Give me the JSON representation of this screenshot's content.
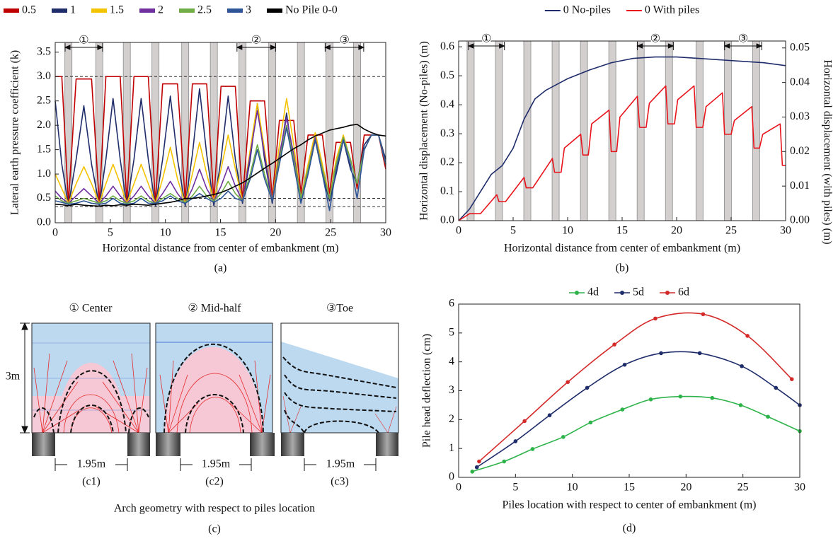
{
  "chart_data": [
    {
      "type": "line",
      "panel": "(a)",
      "ylabel": "Lateral earth pressure coefficient (k)",
      "xlabel": "Horizontal distance from center of embankment (m)",
      "xlim": [
        0,
        30
      ],
      "ylim": [
        0,
        3.7
      ],
      "xticks": [
        0,
        5,
        10,
        15,
        20,
        25,
        30
      ],
      "yticks": [
        {
          "value": 0,
          "label": "0.0"
        },
        0.5,
        {
          "value": 1,
          "label": "1.0"
        },
        1.5,
        {
          "value": 2,
          "label": "2.0"
        },
        2.5,
        {
          "value": 3,
          "label": "3.0"
        },
        3.5
      ],
      "legend": "top",
      "piles": [
        1.2,
        4.0,
        6.5,
        9.1,
        11.8,
        14.4,
        17.0,
        19.7,
        22.3,
        24.9,
        27.4
      ],
      "ref_lines": [
        3.0,
        0.5,
        0.33
      ],
      "annotations": [
        {
          "text": "①",
          "x": [
            0.9,
            4.3
          ]
        },
        {
          "text": "②",
          "x": [
            16.5,
            20.0
          ]
        },
        {
          "text": "③",
          "x": [
            24.5,
            28.0
          ]
        }
      ],
      "x": [
        0,
        0.6,
        1.2,
        1.9,
        2.6,
        3.3,
        4.0,
        4.6,
        5.25,
        5.9,
        6.5,
        7.15,
        7.8,
        8.45,
        9.1,
        9.75,
        10.45,
        11.1,
        11.8,
        12.45,
        13.1,
        13.75,
        14.4,
        15.05,
        15.7,
        16.35,
        17.0,
        17.7,
        18.35,
        19.0,
        19.7,
        20.35,
        21.0,
        21.65,
        22.3,
        22.95,
        23.6,
        24.25,
        24.9,
        25.5,
        26.15,
        26.8,
        27.4,
        28.05,
        28.7,
        29.35,
        30.0
      ],
      "series": [
        {
          "name": "0.5",
          "color": "#c00000",
          "values": [
            3.0,
            3.0,
            0.4,
            2.95,
            2.95,
            2.95,
            0.4,
            3.0,
            3.0,
            3.0,
            0.4,
            3.0,
            3.0,
            3.0,
            0.4,
            2.85,
            2.85,
            2.85,
            0.45,
            2.85,
            2.85,
            2.85,
            0.45,
            2.8,
            2.8,
            2.8,
            0.45,
            2.5,
            2.5,
            2.5,
            0.5,
            2.1,
            2.1,
            2.1,
            0.6,
            1.8,
            1.8,
            1.8,
            0.6,
            1.65,
            1.65,
            1.65,
            0.7,
            1.8,
            1.8,
            1.8,
            1.1
          ]
        },
        {
          "name": "1",
          "color": "#1f2d6b",
          "values": [
            2.5,
            1.2,
            0.35,
            1.3,
            2.4,
            1.2,
            0.35,
            1.3,
            2.55,
            1.3,
            0.35,
            1.3,
            2.55,
            1.3,
            0.35,
            1.3,
            2.6,
            1.3,
            0.35,
            1.4,
            2.75,
            1.4,
            0.35,
            1.3,
            2.6,
            1.3,
            0.4,
            1.3,
            2.45,
            1.3,
            0.4,
            1.3,
            2.25,
            1.2,
            0.45,
            1.0,
            1.7,
            1.0,
            0.45,
            1.0,
            1.7,
            1.1,
            0.8,
            1.6,
            1.8,
            1.8,
            1.3
          ]
        },
        {
          "name": "1.5",
          "color": "#f5c400",
          "values": [
            1.0,
            0.7,
            0.4,
            0.8,
            1.15,
            0.8,
            0.4,
            0.8,
            1.2,
            0.8,
            0.4,
            0.8,
            1.2,
            0.8,
            0.4,
            0.9,
            1.55,
            0.9,
            0.4,
            1.0,
            1.65,
            1.0,
            0.45,
            1.1,
            1.8,
            1.1,
            0.45,
            1.5,
            2.45,
            1.5,
            0.45,
            1.6,
            2.55,
            1.6,
            0.5,
            1.2,
            1.85,
            1.2,
            0.5,
            1.3,
            1.8,
            1.3,
            0.8,
            1.5,
            1.8,
            1.8,
            1.2
          ]
        },
        {
          "name": "2",
          "color": "#7030a0",
          "values": [
            0.65,
            0.5,
            0.4,
            0.55,
            0.7,
            0.55,
            0.4,
            0.55,
            0.75,
            0.55,
            0.4,
            0.55,
            0.75,
            0.55,
            0.4,
            0.6,
            0.85,
            0.6,
            0.4,
            0.7,
            1.1,
            0.7,
            0.45,
            0.75,
            1.15,
            0.75,
            0.45,
            1.4,
            2.3,
            1.4,
            0.45,
            1.4,
            2.15,
            1.4,
            0.5,
            1.1,
            1.75,
            1.1,
            0.5,
            1.2,
            1.75,
            1.3,
            0.8,
            1.5,
            1.8,
            1.8,
            1.2
          ]
        },
        {
          "name": "2.5",
          "color": "#70ad47",
          "values": [
            0.55,
            0.45,
            0.4,
            0.45,
            0.5,
            0.45,
            0.4,
            0.45,
            0.55,
            0.45,
            0.4,
            0.45,
            0.55,
            0.45,
            0.4,
            0.5,
            0.6,
            0.5,
            0.42,
            0.55,
            0.75,
            0.55,
            0.45,
            0.6,
            0.85,
            0.6,
            0.45,
            1.0,
            1.6,
            1.0,
            0.45,
            1.3,
            2.0,
            1.3,
            0.5,
            1.1,
            1.7,
            1.1,
            0.5,
            1.2,
            1.75,
            1.3,
            0.8,
            1.5,
            1.8,
            1.8,
            1.2
          ]
        },
        {
          "name": "3",
          "color": "#2e5597",
          "values": [
            0.45,
            0.42,
            0.38,
            0.4,
            0.45,
            0.4,
            0.38,
            0.4,
            0.5,
            0.4,
            0.38,
            0.4,
            0.5,
            0.4,
            0.4,
            0.45,
            0.55,
            0.45,
            0.4,
            0.5,
            0.6,
            0.5,
            0.42,
            0.5,
            0.65,
            0.5,
            0.45,
            0.9,
            1.5,
            0.9,
            0.45,
            1.2,
            1.95,
            1.2,
            0.4,
            1.0,
            1.7,
            1.0,
            0.25,
            1.1,
            1.7,
            1.2,
            0.5,
            1.5,
            1.8,
            1.8,
            1.2
          ]
        },
        {
          "name": "No Pile 0-0",
          "color": "#000000",
          "values": [
            0.38,
            0.37,
            0.35,
            0.38,
            0.36,
            0.35,
            0.34,
            0.36,
            0.35,
            0.37,
            0.36,
            0.38,
            0.37,
            0.36,
            0.38,
            0.4,
            0.42,
            0.45,
            0.5,
            0.5,
            0.52,
            0.55,
            0.58,
            0.62,
            0.68,
            0.75,
            0.82,
            0.92,
            1.02,
            1.12,
            1.22,
            1.32,
            1.42,
            1.52,
            1.6,
            1.7,
            1.78,
            1.84,
            1.9,
            1.93,
            1.96,
            2.0,
            2.02,
            1.92,
            1.85,
            1.8,
            1.78
          ]
        }
      ]
    },
    {
      "type": "line",
      "panel": "(b)",
      "ylabel": "Horizontal displacement (No-piles) (m)",
      "y2label": "Horizontal displacement (with piles) (m)",
      "xlabel": "Horizontal distance from center of embankment (m)",
      "xlim": [
        0,
        30
      ],
      "ylim": [
        0,
        0.62
      ],
      "y2lim": [
        0,
        0.052
      ],
      "xticks": [
        0,
        5,
        10,
        15,
        20,
        25,
        30
      ],
      "yticks": [
        {
          "value": 0,
          "label": "0.0"
        },
        0.1,
        0.2,
        0.3,
        0.4,
        0.5,
        0.6
      ],
      "y2ticks": [
        {
          "value": 0,
          "label": "0.00"
        },
        {
          "value": 0.01,
          "label": "0.01"
        },
        {
          "value": 0.02,
          "label": "0.02"
        },
        {
          "value": 0.03,
          "label": "0.03"
        },
        {
          "value": 0.04,
          "label": "0.04"
        },
        {
          "value": 0.05,
          "label": "0.05"
        }
      ],
      "legend": "top",
      "piles": [
        1.1,
        3.7,
        6.3,
        8.9,
        11.5,
        14.1,
        16.7,
        19.3,
        22.1,
        24.7,
        27.3
      ],
      "annotations": [
        {
          "text": "①",
          "x": [
            0.9,
            4.2
          ]
        },
        {
          "text": "②",
          "x": [
            16.4,
            19.7
          ]
        },
        {
          "text": "③",
          "x": [
            24.4,
            27.8
          ]
        }
      ],
      "series": [
        {
          "name": "0 No-piles",
          "color": "#1f2d6b",
          "x": [
            0,
            1,
            2,
            3,
            4,
            5,
            6,
            7,
            8,
            9,
            10,
            12,
            14,
            16,
            18,
            20,
            22,
            24,
            26,
            28,
            30
          ],
          "values": [
            0,
            0.04,
            0.1,
            0.16,
            0.19,
            0.25,
            0.35,
            0.42,
            0.45,
            0.47,
            0.49,
            0.52,
            0.545,
            0.56,
            0.565,
            0.565,
            0.56,
            0.555,
            0.55,
            0.545,
            0.535
          ]
        },
        {
          "name": "0 With piles",
          "color": "#e8141c",
          "axis": "y2",
          "x": [
            0,
            1.0,
            2.0,
            3.5,
            3.7,
            4.3,
            6.0,
            6.2,
            6.8,
            8.6,
            8.8,
            9.4,
            9.7,
            11.2,
            11.4,
            11.9,
            12.2,
            13.8,
            14.0,
            14.5,
            14.8,
            16.4,
            16.6,
            17.2,
            17.5,
            19.0,
            19.2,
            19.8,
            20.1,
            21.6,
            21.8,
            22.4,
            22.7,
            24.2,
            24.4,
            25.0,
            25.3,
            26.9,
            27.1,
            27.6,
            27.9,
            29.5,
            29.7,
            30
          ],
          "values": [
            0,
            0.002,
            0.002,
            0.0075,
            0.0055,
            0.0055,
            0.0125,
            0.0095,
            0.0095,
            0.018,
            0.014,
            0.014,
            0.021,
            0.025,
            0.019,
            0.019,
            0.028,
            0.032,
            0.02,
            0.02,
            0.03,
            0.036,
            0.027,
            0.027,
            0.034,
            0.039,
            0.028,
            0.028,
            0.035,
            0.039,
            0.027,
            0.027,
            0.033,
            0.037,
            0.025,
            0.025,
            0.029,
            0.033,
            0.021,
            0.021,
            0.025,
            0.028,
            0.016,
            0.016
          ]
        }
      ]
    },
    {
      "type": "line",
      "panel": "(d)",
      "markers": true,
      "smooth": true,
      "ylabel": "Pile head deflection (cm)",
      "xlabel": "Piles location with respect to center of embankment (m)",
      "xlim": [
        0,
        30
      ],
      "ylim": [
        0,
        6
      ],
      "xticks": [
        0,
        5,
        10,
        15,
        20,
        25,
        30
      ],
      "yticks": [
        0,
        1,
        2,
        3,
        4,
        5,
        6
      ],
      "legend": "top",
      "series": [
        {
          "name": "4d",
          "color": "#2db34a",
          "x": [
            1.2,
            4,
            6.5,
            9.2,
            11.6,
            14.4,
            16.9,
            19.5,
            22.3,
            24.8,
            27.2,
            30
          ],
          "values": [
            0.2,
            0.55,
            0.98,
            1.4,
            1.9,
            2.35,
            2.7,
            2.8,
            2.75,
            2.5,
            2.1,
            1.6
          ]
        },
        {
          "name": "5d",
          "color": "#1f2d6b",
          "x": [
            1.6,
            5,
            8,
            11.3,
            14.6,
            17.8,
            21.2,
            24.9,
            27.9,
            30
          ],
          "values": [
            0.35,
            1.25,
            2.15,
            3.1,
            3.9,
            4.3,
            4.3,
            3.85,
            3.1,
            2.5
          ]
        },
        {
          "name": "6d",
          "color": "#d42a2a",
          "x": [
            1.8,
            5.8,
            9.6,
            13.7,
            17.3,
            21.5,
            25.4,
            29.3
          ],
          "values": [
            0.55,
            1.95,
            3.3,
            4.6,
            5.5,
            5.65,
            4.9,
            3.4
          ]
        }
      ]
    }
  ],
  "panel_c": {
    "titles": [
      "① Center",
      "② Mid-half",
      "③Toe"
    ],
    "height_label": "3m",
    "span_labels": [
      "1.95m",
      "1.95m",
      "1.95m"
    ],
    "sublabels": [
      "(c1)",
      "(c2)",
      "(c3)"
    ],
    "caption": "Arch geometry with respect to piles location",
    "panel": "(c)"
  }
}
